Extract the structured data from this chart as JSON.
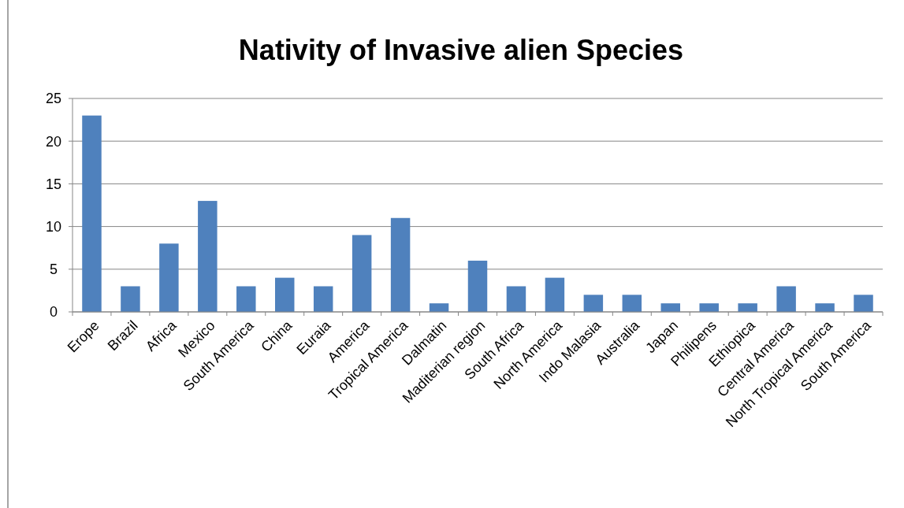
{
  "chart_data": {
    "type": "bar",
    "title": "Nativity of Invasive alien Species",
    "categories": [
      "Erope",
      "Brazil",
      "Africa",
      "Mexico",
      "South America",
      "China",
      "Euraia",
      "America",
      "Tropical America",
      "Dalmatin",
      "Maditerian region",
      "South Africa",
      "North America",
      "Indo Malasia",
      "Australia",
      "Japan",
      "Philipens",
      "Ethiopica",
      "Central America",
      "North Tropical America",
      "South America"
    ],
    "values": [
      23,
      3,
      8,
      13,
      3,
      4,
      3,
      9,
      11,
      1,
      6,
      3,
      4,
      2,
      2,
      1,
      1,
      1,
      3,
      1,
      2
    ],
    "color": "#4f81bd",
    "ylim": [
      0,
      25
    ],
    "yticks": [
      0,
      5,
      10,
      15,
      20,
      25
    ],
    "grid": "y"
  }
}
